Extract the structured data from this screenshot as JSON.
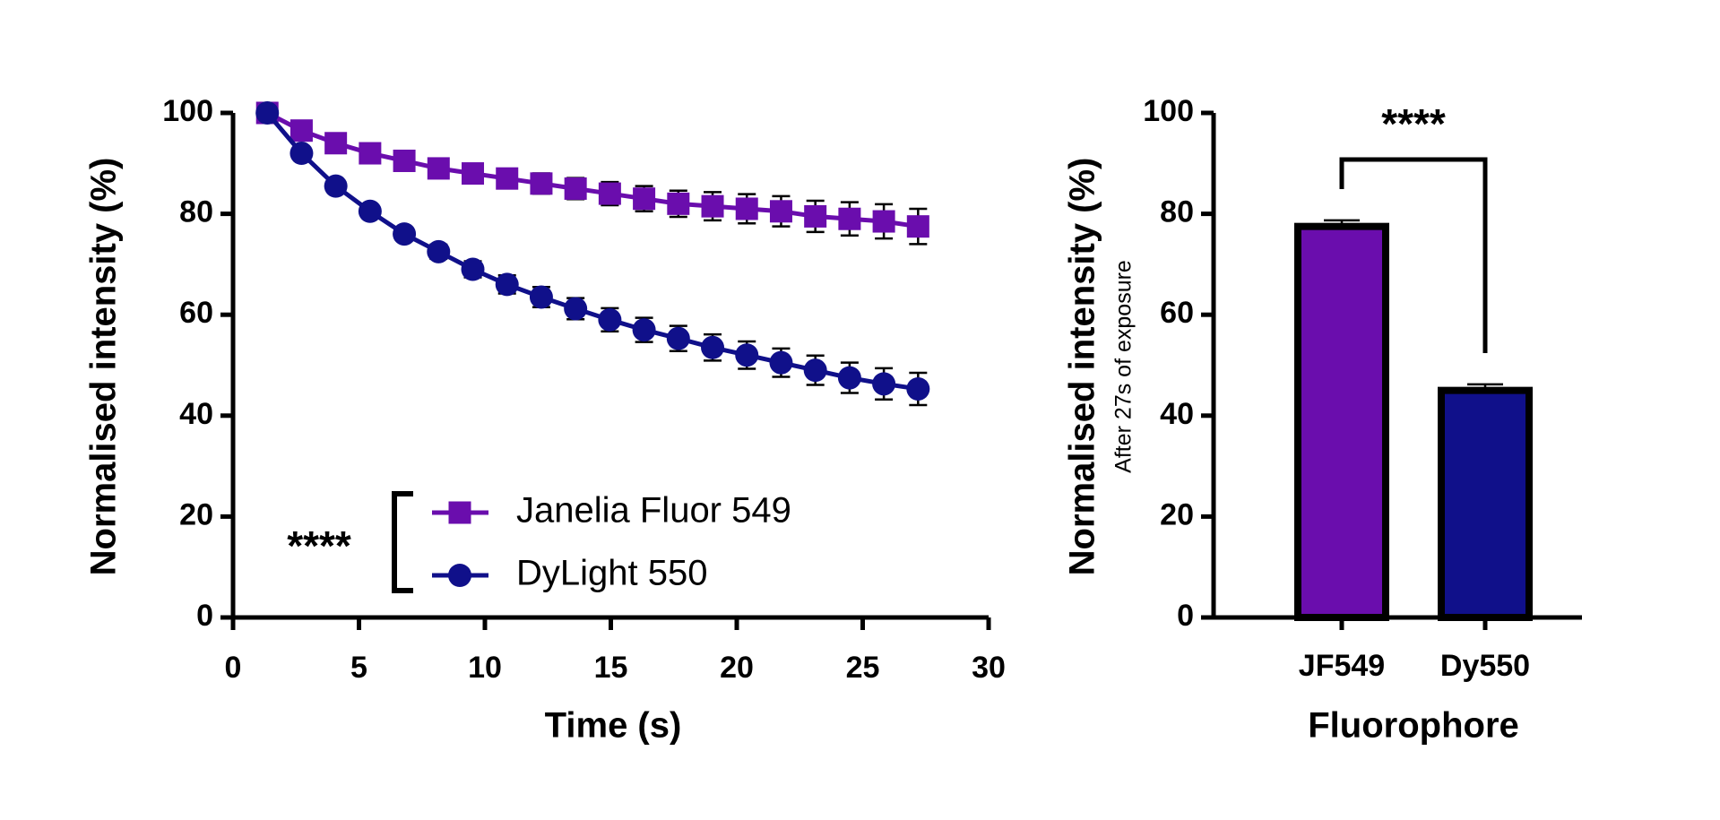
{
  "chart_data": [
    {
      "type": "line",
      "xlabel": "Time (s)",
      "ylabel": "Normalised intensity (%)",
      "annotations": [
        "****"
      ],
      "xlim": [
        0,
        30
      ],
      "xticks": [
        0,
        5,
        10,
        15,
        20,
        25,
        30
      ],
      "ylim": [
        0,
        100
      ],
      "yticks": [
        0,
        20,
        40,
        60,
        80,
        100
      ],
      "x": [
        1.36,
        2.72,
        4.08,
        5.44,
        6.8,
        8.16,
        9.52,
        10.88,
        12.24,
        13.6,
        14.96,
        16.32,
        17.68,
        19.04,
        20.4,
        21.76,
        23.12,
        24.48,
        25.84,
        27.2
      ],
      "series": [
        {
          "name": "Janelia Fluor 549",
          "color": "#6a0dad",
          "marker": "square",
          "values": [
            100,
            96.5,
            94,
            92,
            90.5,
            89,
            88,
            87,
            86,
            85,
            84,
            83,
            82,
            81.5,
            81,
            80.5,
            79.5,
            79,
            78.5,
            77.5
          ],
          "errors": [
            0.3,
            0.6,
            0.8,
            1,
            1.2,
            1.4,
            1.6,
            1.8,
            2,
            2.1,
            2.3,
            2.5,
            2.6,
            2.8,
            2.9,
            3,
            3.1,
            3.3,
            3.4,
            3.5
          ]
        },
        {
          "name": "DyLight 550",
          "color": "#10108a",
          "marker": "circle",
          "values": [
            100,
            92,
            85.5,
            80.5,
            76,
            72.5,
            69,
            66,
            63.5,
            61.2,
            59,
            57,
            55.3,
            53.5,
            52,
            50.5,
            49,
            47.5,
            46.3,
            45.3
          ],
          "errors": [
            0.3,
            0.6,
            0.8,
            1,
            1.2,
            1.4,
            1.6,
            1.8,
            2,
            2.1,
            2.3,
            2.4,
            2.5,
            2.6,
            2.7,
            2.8,
            2.9,
            3,
            3.1,
            3.2
          ]
        }
      ]
    },
    {
      "type": "bar",
      "xlabel": "Fluorophore",
      "ylabel": "Normalised intensity (%)",
      "y2label": "After 27s of exposure",
      "annotations": [
        "****"
      ],
      "ylim": [
        0,
        100
      ],
      "yticks": [
        0,
        20,
        40,
        60,
        80,
        100
      ],
      "categories": [
        "JF549",
        "Dy550"
      ],
      "values": [
        77.5,
        45
      ],
      "errors": [
        1.2,
        1.2
      ],
      "colors": [
        "#6a0dad",
        "#10108a"
      ]
    }
  ]
}
